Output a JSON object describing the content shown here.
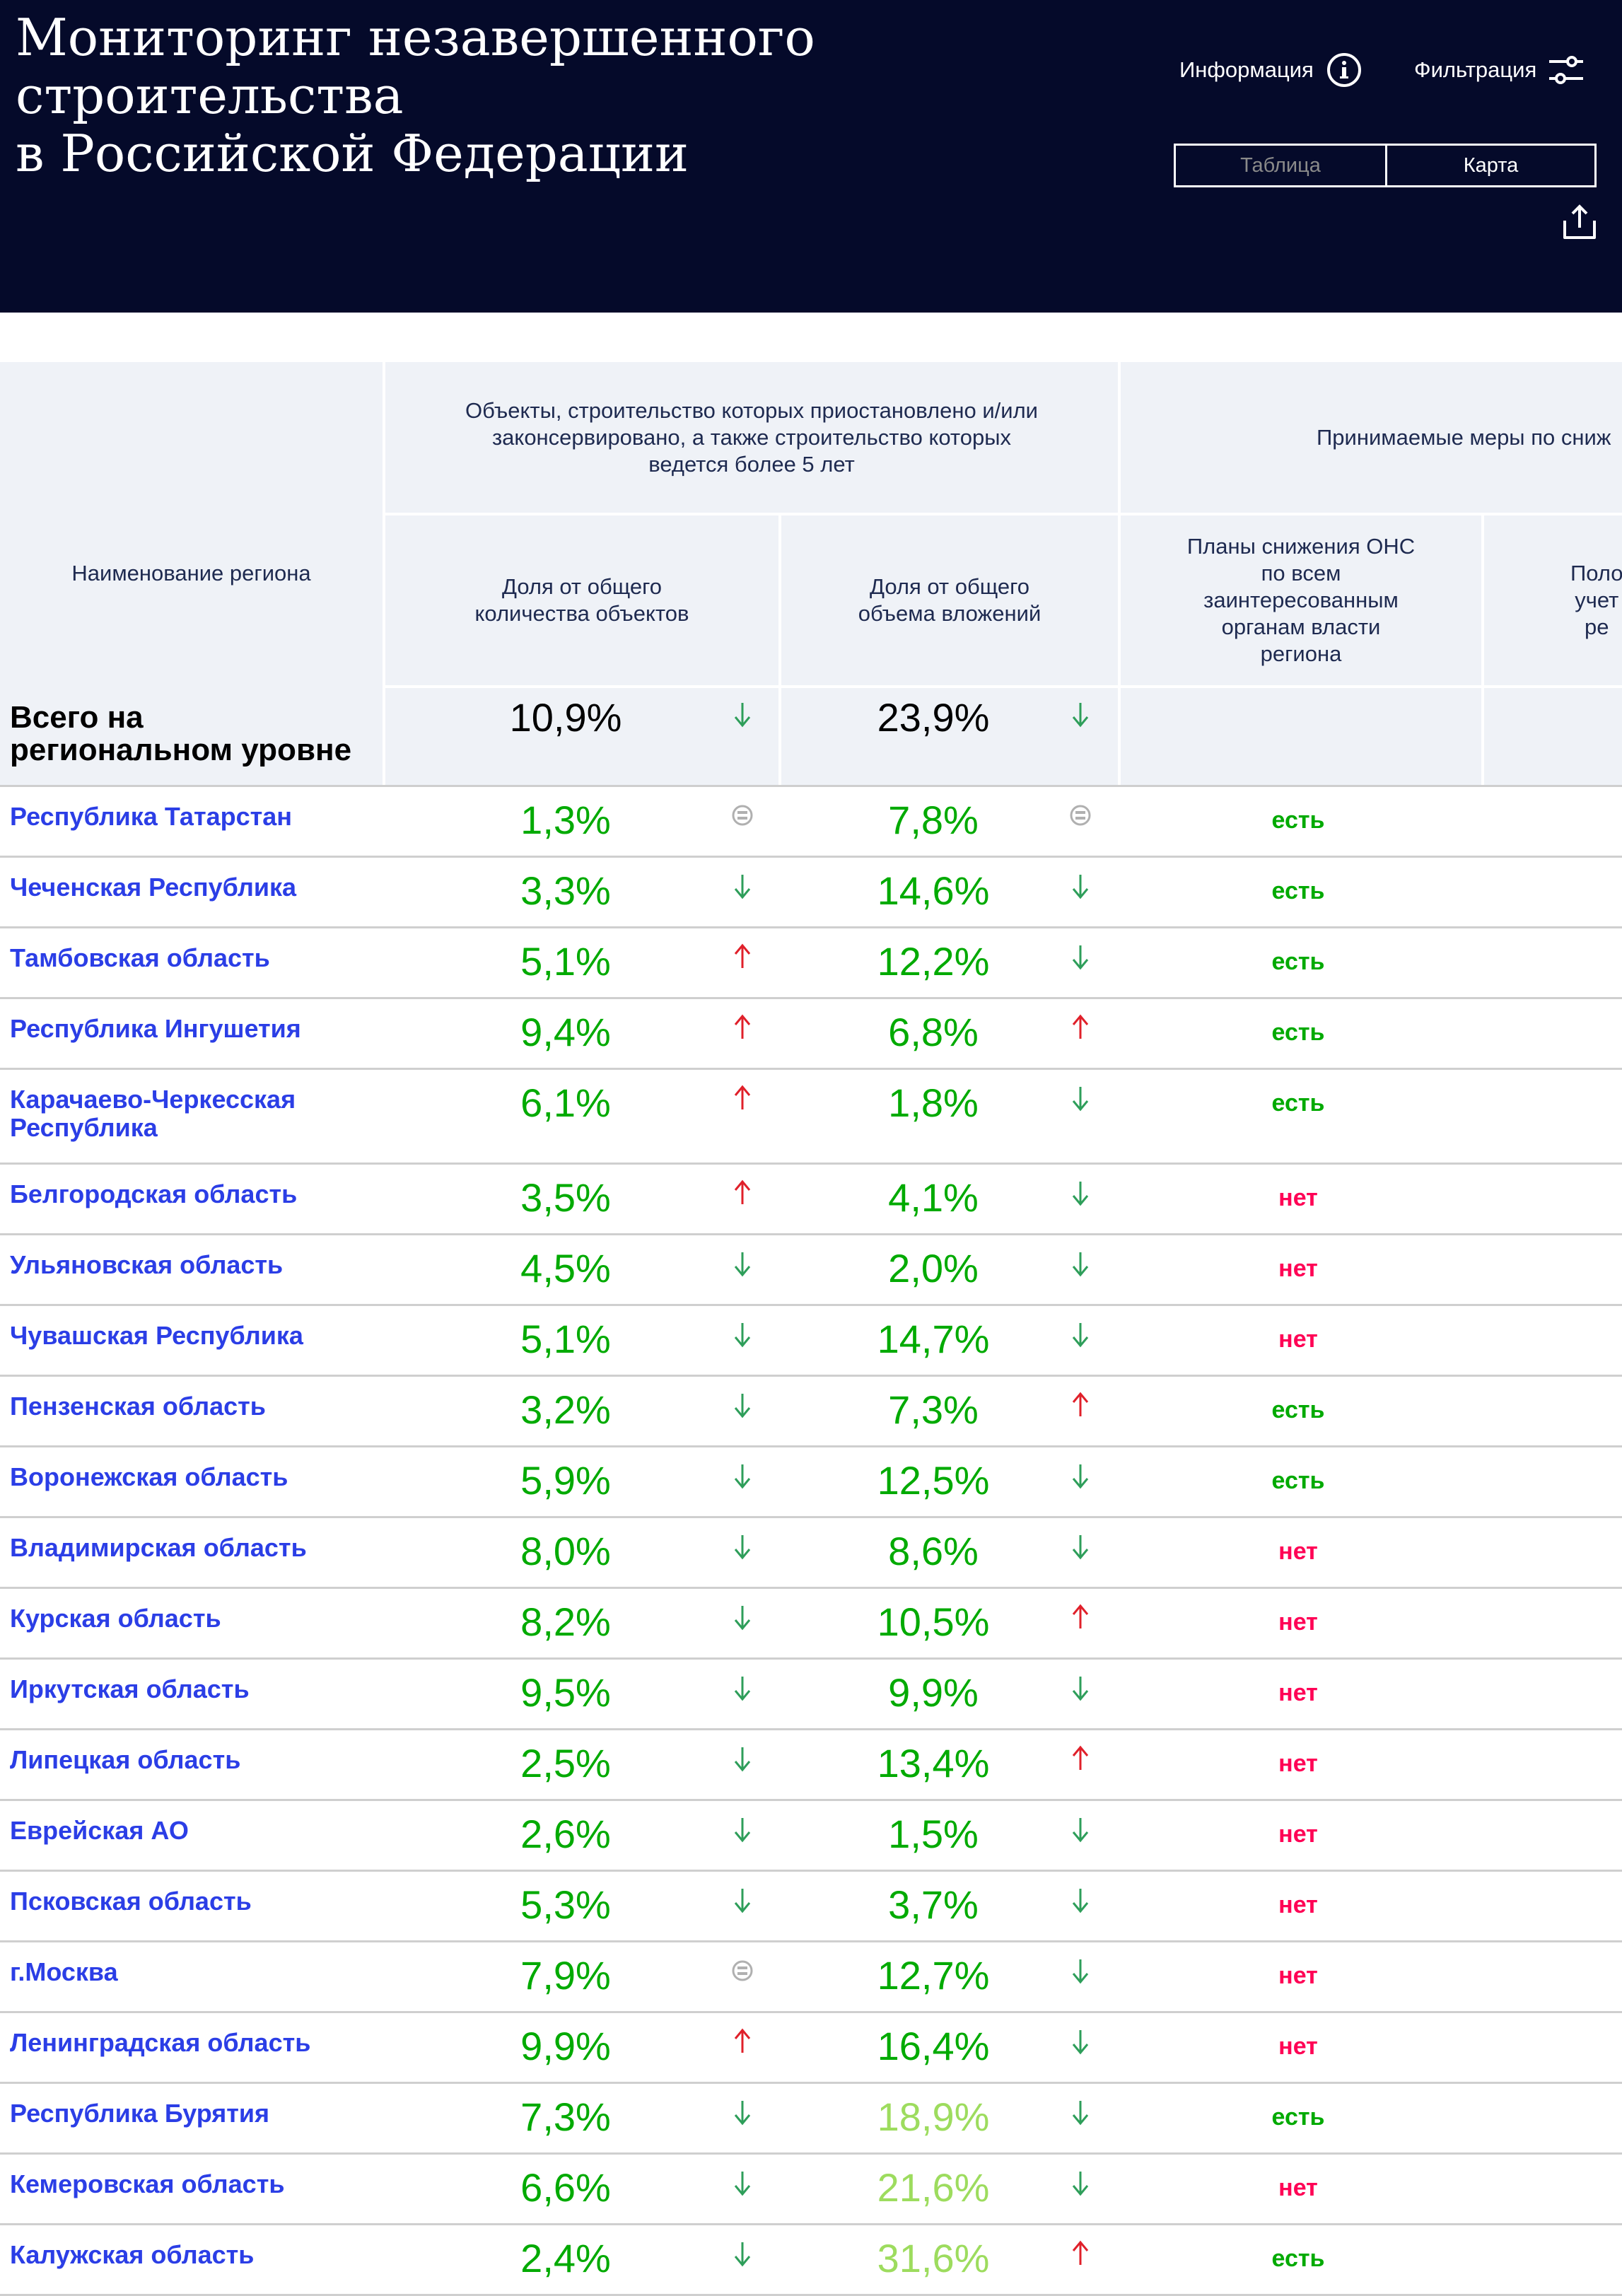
{
  "header": {
    "title_line1": "Мониторинг незавершенного строительства",
    "title_line2": "в Российской Федерации",
    "info_label": "Информация",
    "filter_label": "Фильтрация",
    "view_tabs": [
      {
        "label": "Таблица",
        "active": false
      },
      {
        "label": "Карта",
        "active": true
      }
    ]
  },
  "table": {
    "col_region": "Наименование региона",
    "group1": "Объекты, строительство которых приостановлено и/или законсервировано, а также строительство которых ведется более 5 лет",
    "col_count_share": "Доля от общего количества объектов",
    "col_invest_share": "Доля от общего объема вложений",
    "group2": "Принимаемые меры по сниж",
    "col_plans": "Планы снижения ОНС по всем заинтересованным органам власти региона",
    "col_next_partial": "Поло учет ре",
    "total": {
      "label": "Всего на региональном уровне",
      "count": "10,9%",
      "count_trend": "down",
      "invest": "23,9%",
      "invest_trend": "down"
    },
    "colors": {
      "value_green": "#00aa00",
      "value_light_green": "#9ddc5e",
      "region_link": "#2b3ee6",
      "yes": "#00aa00",
      "no": "#ff0055",
      "trend_down": "#2e9e5a",
      "trend_up": "#e0202a",
      "trend_equal": "#b0b0b0"
    },
    "rows": [
      {
        "region": "Республика Татарстан",
        "count": "1,3%",
        "count_trend": "equal",
        "invest": "7,8%",
        "invest_trend": "equal",
        "plans": "есть"
      },
      {
        "region": "Чеченская Республика",
        "count": "3,3%",
        "count_trend": "down",
        "invest": "14,6%",
        "invest_trend": "down",
        "plans": "есть"
      },
      {
        "region": "Тамбовская область",
        "count": "5,1%",
        "count_trend": "up",
        "invest": "12,2%",
        "invest_trend": "down",
        "plans": "есть"
      },
      {
        "region": "Республика Ингушетия",
        "count": "9,4%",
        "count_trend": "up",
        "invest": "6,8%",
        "invest_trend": "up",
        "plans": "есть"
      },
      {
        "region": "Карачаево-Черкесская Республика",
        "count": "6,1%",
        "count_trend": "up",
        "invest": "1,8%",
        "invest_trend": "down",
        "plans": "есть"
      },
      {
        "region": "Белгородская область",
        "count": "3,5%",
        "count_trend": "up",
        "invest": "4,1%",
        "invest_trend": "down",
        "plans": "нет"
      },
      {
        "region": "Ульяновская область",
        "count": "4,5%",
        "count_trend": "down",
        "invest": "2,0%",
        "invest_trend": "down",
        "plans": "нет"
      },
      {
        "region": "Чувашская Республика",
        "count": "5,1%",
        "count_trend": "down",
        "invest": "14,7%",
        "invest_trend": "down",
        "plans": "нет"
      },
      {
        "region": "Пензенская область",
        "count": "3,2%",
        "count_trend": "down",
        "invest": "7,3%",
        "invest_trend": "up",
        "plans": "есть"
      },
      {
        "region": "Воронежская область",
        "count": "5,9%",
        "count_trend": "down",
        "invest": "12,5%",
        "invest_trend": "down",
        "plans": "есть"
      },
      {
        "region": "Владимирская область",
        "count": "8,0%",
        "count_trend": "down",
        "invest": "8,6%",
        "invest_trend": "down",
        "plans": "нет"
      },
      {
        "region": "Курская область",
        "count": "8,2%",
        "count_trend": "down",
        "invest": "10,5%",
        "invest_trend": "up",
        "plans": "нет"
      },
      {
        "region": "Иркутская область",
        "count": "9,5%",
        "count_trend": "down",
        "invest": "9,9%",
        "invest_trend": "down",
        "plans": "нет"
      },
      {
        "region": "Липецкая область",
        "count": "2,5%",
        "count_trend": "down",
        "invest": "13,4%",
        "invest_trend": "up",
        "plans": "нет"
      },
      {
        "region": "Еврейская АО",
        "count": "2,6%",
        "count_trend": "down",
        "invest": "1,5%",
        "invest_trend": "down",
        "plans": "нет"
      },
      {
        "region": "Псковская область",
        "count": "5,3%",
        "count_trend": "down",
        "invest": "3,7%",
        "invest_trend": "down",
        "plans": "нет"
      },
      {
        "region": "г.Москва",
        "count": "7,9%",
        "count_trend": "equal",
        "invest": "12,7%",
        "invest_trend": "down",
        "plans": "нет"
      },
      {
        "region": "Ленинградская область",
        "count": "9,9%",
        "count_trend": "up",
        "invest": "16,4%",
        "invest_trend": "down",
        "plans": "нет"
      },
      {
        "region": "Республика Бурятия",
        "count": "7,3%",
        "count_trend": "down",
        "invest": "18,9%",
        "invest_trend": "down",
        "invest_tone": "light",
        "plans": "есть"
      },
      {
        "region": "Кемеровская область",
        "count": "6,6%",
        "count_trend": "down",
        "invest": "21,6%",
        "invest_trend": "down",
        "invest_tone": "light",
        "plans": "нет"
      },
      {
        "region": "Калужская область",
        "count": "2,4%",
        "count_trend": "down",
        "invest": "31,6%",
        "invest_trend": "up",
        "invest_tone": "light",
        "plans": "есть"
      }
    ]
  }
}
